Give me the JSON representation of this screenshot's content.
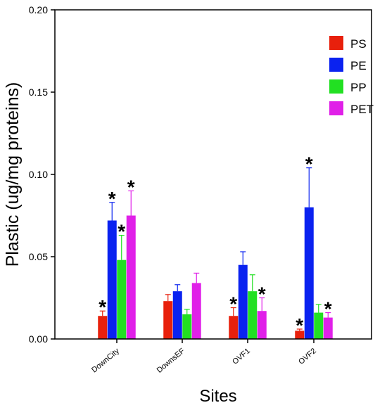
{
  "chart_data": {
    "type": "bar",
    "xlabel": "Sites",
    "ylabel": "Plastic (ug/mg proteins)",
    "ylim": [
      0,
      0.2
    ],
    "yticks": [
      "0.00",
      "0.05",
      "0.10",
      "0.15",
      "0.20"
    ],
    "categories": [
      "DownCity",
      "DownsEF",
      "OVF1",
      "OVF2"
    ],
    "series": [
      {
        "name": "PS",
        "color": "#e8200c",
        "values": [
          0.014,
          0.023,
          0.014,
          0.005
        ],
        "errors": [
          0.003,
          0.004,
          0.005,
          0.001
        ],
        "significant": [
          true,
          false,
          true,
          true
        ]
      },
      {
        "name": "PE",
        "color": "#0a22f0",
        "values": [
          0.072,
          0.029,
          0.045,
          0.08
        ],
        "errors": [
          0.011,
          0.004,
          0.008,
          0.024
        ],
        "significant": [
          true,
          false,
          false,
          true
        ]
      },
      {
        "name": "PP",
        "color": "#22e022",
        "values": [
          0.048,
          0.015,
          0.029,
          0.016
        ],
        "errors": [
          0.015,
          0.003,
          0.01,
          0.005
        ],
        "significant": [
          true,
          false,
          false,
          false
        ]
      },
      {
        "name": "PET",
        "color": "#e020e8",
        "values": [
          0.075,
          0.034,
          0.017,
          0.013
        ],
        "errors": [
          0.015,
          0.006,
          0.008,
          0.003
        ],
        "significant": [
          true,
          false,
          true,
          true
        ]
      }
    ],
    "significance_marker": "*",
    "legend_position": "top-right",
    "grid": false
  }
}
